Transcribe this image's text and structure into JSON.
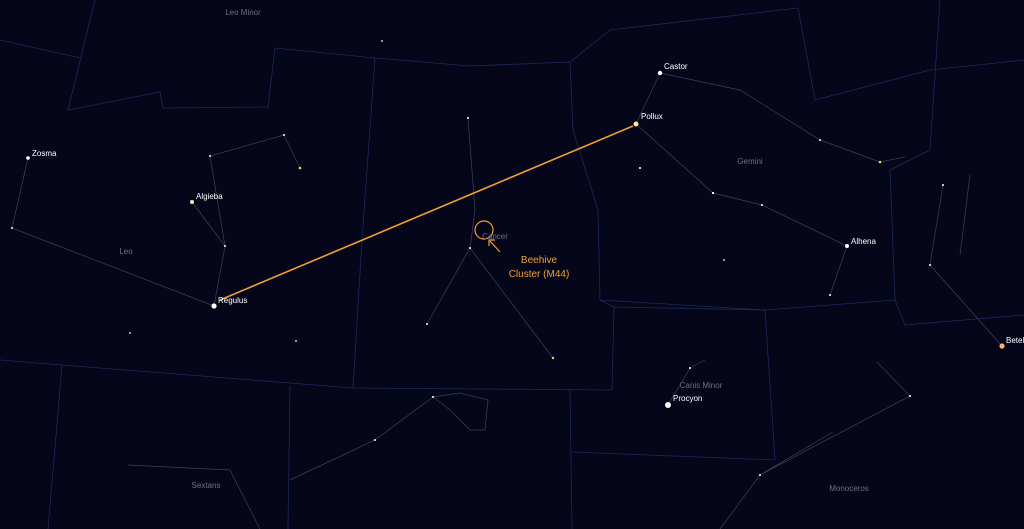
{
  "constellations": {
    "leo_minor": "Leo Minor",
    "gemini": "Gemini",
    "leo": "Leo",
    "cancer": "Cancer",
    "canis_minor": "Canis Minor",
    "sextans": "Sextans",
    "monoceros": "Monoceros"
  },
  "stars": {
    "castor": "Castor",
    "pollux": "Pollux",
    "zosma": "Zosma",
    "algieba": "Algieba",
    "alhena": "Alhena",
    "regulus": "Regulus",
    "procyon": "Procyon",
    "betelgeuse": "Betelgeuse"
  },
  "annotation": {
    "lines": [
      "Beehive",
      "Cluster (M44)"
    ]
  }
}
